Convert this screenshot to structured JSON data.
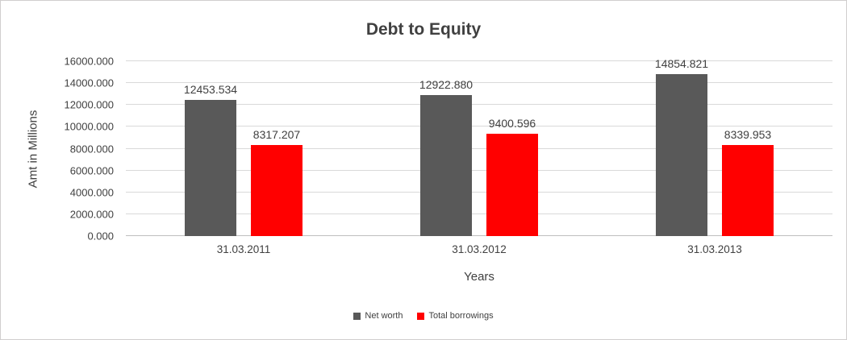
{
  "chart_data": {
    "type": "bar",
    "title": "Debt to Equity",
    "xlabel": "Years",
    "ylabel": "Amt in Millions",
    "categories": [
      "31.03.2011",
      "31.03.2012",
      "31.03.2013"
    ],
    "series": [
      {
        "name": "Net worth",
        "color": "#595959",
        "values": [
          12453.534,
          12922.88,
          14854.821
        ],
        "data_labels": [
          "12453.534",
          "12922.880",
          "14854.821"
        ]
      },
      {
        "name": "Total borrowings",
        "color": "#ff0000",
        "values": [
          8317.207,
          9400.596,
          8339.953
        ],
        "data_labels": [
          "8317.207",
          "9400.596",
          "8339.953"
        ]
      }
    ],
    "ylim": [
      0,
      16000
    ],
    "ytick_labels": [
      "0.000",
      "2000.000",
      "4000.000",
      "6000.000",
      "8000.000",
      "10000.000",
      "12000.000",
      "14000.000",
      "16000.000"
    ],
    "grid": true,
    "legend_position": "bottom"
  },
  "style": {
    "grid_color": "#d9d9d9",
    "axis_line_color": "#bfbfbf",
    "text_color": "#404040",
    "border_color": "#d0cece",
    "background": "#ffffff"
  }
}
